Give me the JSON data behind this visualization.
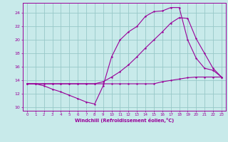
{
  "xlabel": "Windchill (Refroidissement éolien,°C)",
  "background_color": "#c8eaea",
  "grid_color": "#98c8c8",
  "line_color": "#990099",
  "xlim": [
    -0.5,
    23.5
  ],
  "ylim": [
    9.5,
    25.5
  ],
  "xticks": [
    0,
    1,
    2,
    3,
    4,
    5,
    6,
    7,
    8,
    9,
    10,
    11,
    12,
    13,
    14,
    15,
    16,
    17,
    18,
    19,
    20,
    21,
    22,
    23
  ],
  "yticks": [
    10,
    12,
    14,
    16,
    18,
    20,
    22,
    24
  ],
  "line1_x": [
    0,
    1,
    2,
    3,
    4,
    5,
    6,
    7,
    8,
    9,
    10,
    11,
    12,
    13,
    14,
    15,
    16,
    17,
    18,
    19,
    20,
    21,
    22,
    23
  ],
  "line1_y": [
    13.5,
    13.5,
    13.5,
    13.5,
    13.5,
    13.5,
    13.5,
    13.5,
    13.5,
    13.5,
    13.5,
    13.5,
    13.5,
    13.5,
    13.5,
    13.5,
    13.8,
    14.0,
    14.2,
    14.4,
    14.5,
    14.5,
    14.5,
    14.5
  ],
  "line2_x": [
    0,
    1,
    2,
    3,
    4,
    5,
    6,
    7,
    8,
    9,
    10,
    11,
    12,
    13,
    14,
    15,
    16,
    17,
    18,
    19,
    20,
    21,
    22,
    23
  ],
  "line2_y": [
    13.5,
    13.5,
    13.2,
    12.7,
    12.3,
    11.8,
    11.3,
    10.8,
    10.5,
    13.2,
    17.5,
    20.0,
    21.2,
    22.0,
    23.5,
    24.2,
    24.3,
    24.8,
    24.8,
    20.0,
    17.3,
    15.8,
    15.5,
    14.5
  ],
  "line3_x": [
    0,
    1,
    2,
    3,
    4,
    5,
    6,
    7,
    8,
    9,
    10,
    11,
    12,
    13,
    14,
    15,
    16,
    17,
    18,
    19,
    20,
    21,
    22,
    23
  ],
  "line3_y": [
    13.5,
    13.5,
    13.5,
    13.5,
    13.5,
    13.5,
    13.5,
    13.5,
    13.5,
    13.8,
    14.5,
    15.3,
    16.3,
    17.5,
    18.8,
    20.0,
    21.2,
    22.5,
    23.3,
    23.2,
    20.2,
    18.0,
    15.8,
    14.5
  ]
}
